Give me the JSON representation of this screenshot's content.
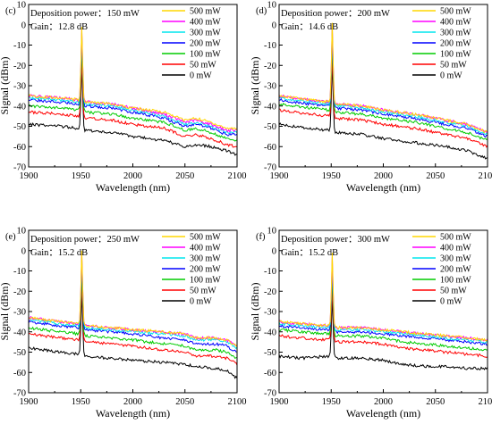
{
  "chart_data": [
    {
      "type": "line",
      "panel_label": "(c)",
      "annotation": "Deposition power：150 mW",
      "gain": "Gain：12.8 dB",
      "xlabel": "Wavelength (nm)",
      "ylabel": "Signal (dBm)",
      "xlim": [
        1900,
        2100
      ],
      "ylim": [
        -70,
        10
      ],
      "xticks": [
        1900,
        1950,
        2000,
        2050,
        2100
      ],
      "yticks": [
        10,
        0,
        -10,
        -20,
        -30,
        -40,
        -50,
        -60,
        -70
      ],
      "legend_position": "top-right",
      "peak_x": 1951,
      "series": [
        {
          "name": "500 mW",
          "color": "#ffd700",
          "peak": -1,
          "x": [
            1900,
            1930,
            1948,
            1955,
            1980,
            2000,
            2030,
            2050,
            2060,
            2075,
            2090,
            2100
          ],
          "y": [
            -35,
            -36,
            -37,
            -38,
            -39,
            -41,
            -43,
            -47,
            -46,
            -48,
            -51,
            -51
          ]
        },
        {
          "name": "400 mW",
          "color": "#ff00ff",
          "peak": -2,
          "x": [
            1900,
            1930,
            1948,
            1955,
            1980,
            2000,
            2030,
            2050,
            2060,
            2075,
            2090,
            2100
          ],
          "y": [
            -35,
            -36,
            -37,
            -38,
            -39,
            -41,
            -44,
            -48,
            -47,
            -49,
            -52,
            -52
          ]
        },
        {
          "name": "300 mW",
          "color": "#00e5ee",
          "peak": -4,
          "x": [
            1900,
            1930,
            1948,
            1955,
            1980,
            2000,
            2030,
            2050,
            2060,
            2075,
            2090,
            2100
          ],
          "y": [
            -36,
            -37,
            -38,
            -39,
            -40,
            -42,
            -45,
            -49,
            -48,
            -50,
            -53,
            -53
          ]
        },
        {
          "name": "200 mW",
          "color": "#0000ff",
          "peak": -6,
          "x": [
            1900,
            1930,
            1948,
            1955,
            1980,
            2000,
            2030,
            2050,
            2060,
            2075,
            2090,
            2100
          ],
          "y": [
            -37,
            -38,
            -39,
            -40,
            -41,
            -43,
            -46,
            -50,
            -49,
            -51,
            -54,
            -54
          ]
        },
        {
          "name": "100 mW",
          "color": "#00cc00",
          "peak": -10,
          "x": [
            1900,
            1930,
            1948,
            1955,
            1980,
            2000,
            2030,
            2050,
            2060,
            2075,
            2090,
            2100
          ],
          "y": [
            -40,
            -41,
            -42,
            -43,
            -44,
            -46,
            -48,
            -52,
            -51,
            -53,
            -56,
            -57
          ]
        },
        {
          "name": "50 mW",
          "color": "#ff0000",
          "peak": -17,
          "x": [
            1900,
            1930,
            1948,
            1955,
            1980,
            2000,
            2030,
            2050,
            2060,
            2075,
            2090,
            2100
          ],
          "y": [
            -43,
            -44,
            -45,
            -46,
            -47,
            -49,
            -51,
            -55,
            -54,
            -56,
            -59,
            -60
          ]
        },
        {
          "name": "0 mW",
          "color": "#000000",
          "peak": -20,
          "x": [
            1900,
            1930,
            1948,
            1955,
            1980,
            2000,
            2030,
            2050,
            2060,
            2075,
            2090,
            2100
          ],
          "y": [
            -49,
            -50,
            -51,
            -52,
            -53,
            -55,
            -57,
            -60,
            -59,
            -60,
            -62,
            -64
          ]
        }
      ]
    },
    {
      "type": "line",
      "panel_label": "(d)",
      "annotation": "Deposition power：200 mW",
      "gain": "Gain：14.6 dB",
      "xlabel": "Wavelength (nm)",
      "ylabel": "Signal (dBm)",
      "xlim": [
        1900,
        2100
      ],
      "ylim": [
        -70,
        10
      ],
      "xticks": [
        1900,
        1950,
        2000,
        2050,
        2100
      ],
      "yticks": [
        10,
        0,
        -10,
        -20,
        -30,
        -40,
        -50,
        -60,
        -70
      ],
      "legend_position": "top-right",
      "peak_x": 1951,
      "series": [
        {
          "name": "500 mW",
          "color": "#ffd700",
          "peak": 1,
          "x": [
            1900,
            1930,
            1948,
            1955,
            1980,
            2000,
            2030,
            2060,
            2080,
            2100
          ],
          "y": [
            -35,
            -37,
            -38,
            -39,
            -40,
            -42,
            -44,
            -47,
            -49,
            -53
          ]
        },
        {
          "name": "400 mW",
          "color": "#ff00ff",
          "peak": 0,
          "x": [
            1900,
            1930,
            1948,
            1955,
            1980,
            2000,
            2030,
            2060,
            2080,
            2100
          ],
          "y": [
            -35,
            -37,
            -38,
            -39,
            -40,
            -42,
            -44,
            -47,
            -49,
            -53
          ]
        },
        {
          "name": "300 mW",
          "color": "#00e5ee",
          "peak": -2,
          "x": [
            1900,
            1930,
            1948,
            1955,
            1980,
            2000,
            2030,
            2060,
            2080,
            2100
          ],
          "y": [
            -36,
            -38,
            -39,
            -40,
            -41,
            -43,
            -45,
            -48,
            -50,
            -54
          ]
        },
        {
          "name": "200 mW",
          "color": "#0000ff",
          "peak": -4,
          "x": [
            1900,
            1930,
            1948,
            1955,
            1980,
            2000,
            2030,
            2060,
            2080,
            2100
          ],
          "y": [
            -37,
            -39,
            -40,
            -41,
            -42,
            -44,
            -46,
            -49,
            -51,
            -55
          ]
        },
        {
          "name": "100 mW",
          "color": "#00cc00",
          "peak": -8,
          "x": [
            1900,
            1930,
            1948,
            1955,
            1980,
            2000,
            2030,
            2060,
            2080,
            2100
          ],
          "y": [
            -39,
            -41,
            -42,
            -43,
            -44,
            -46,
            -48,
            -51,
            -53,
            -57
          ]
        },
        {
          "name": "50 mW",
          "color": "#ff0000",
          "peak": -14,
          "x": [
            1900,
            1930,
            1948,
            1955,
            1980,
            2000,
            2030,
            2060,
            2080,
            2100
          ],
          "y": [
            -42,
            -44,
            -45,
            -46,
            -47,
            -49,
            -51,
            -54,
            -56,
            -60
          ]
        },
        {
          "name": "0 mW",
          "color": "#000000",
          "peak": -18,
          "x": [
            1900,
            1930,
            1948,
            1955,
            1980,
            2000,
            2030,
            2060,
            2080,
            2100
          ],
          "y": [
            -49,
            -51,
            -52,
            -53,
            -54,
            -56,
            -58,
            -60,
            -62,
            -66
          ]
        }
      ]
    },
    {
      "type": "line",
      "panel_label": "(e)",
      "annotation": "Deposition power：250 mW",
      "gain": "Gain：15.2 dB",
      "xlabel": "Wavelength (nm)",
      "ylabel": "Signal (dBm)",
      "xlim": [
        1900,
        2100
      ],
      "ylim": [
        -70,
        10
      ],
      "xticks": [
        1900,
        1950,
        2000,
        2050,
        2100
      ],
      "yticks": [
        10,
        0,
        -10,
        -20,
        -30,
        -40,
        -50,
        -60,
        -70
      ],
      "legend_position": "top-right",
      "peak_x": 1951,
      "series": [
        {
          "name": "500 mW",
          "color": "#ffd700",
          "peak": 0,
          "x": [
            1900,
            1930,
            1948,
            1955,
            1980,
            2000,
            2030,
            2050,
            2060,
            2080,
            2090,
            2100
          ],
          "y": [
            -33,
            -35,
            -36,
            -37,
            -38,
            -39,
            -40,
            -41,
            -43,
            -43,
            -44,
            -47
          ]
        },
        {
          "name": "400 mW",
          "color": "#ff00ff",
          "peak": -1,
          "x": [
            1900,
            1930,
            1948,
            1955,
            1980,
            2000,
            2030,
            2050,
            2060,
            2080,
            2090,
            2100
          ],
          "y": [
            -33,
            -35,
            -36,
            -37,
            -38,
            -39,
            -40,
            -41,
            -43,
            -43,
            -44,
            -47
          ]
        },
        {
          "name": "300 mW",
          "color": "#00e5ee",
          "peak": -3,
          "x": [
            1900,
            1930,
            1948,
            1955,
            1980,
            2000,
            2030,
            2050,
            2060,
            2080,
            2090,
            2100
          ],
          "y": [
            -34,
            -36,
            -37,
            -38,
            -39,
            -40,
            -41,
            -42,
            -44,
            -44,
            -45,
            -48
          ]
        },
        {
          "name": "200 mW",
          "color": "#0000ff",
          "peak": -6,
          "x": [
            1900,
            1930,
            1948,
            1955,
            1980,
            2000,
            2030,
            2050,
            2060,
            2080,
            2090,
            2100
          ],
          "y": [
            -35,
            -37,
            -38,
            -39,
            -40,
            -41,
            -43,
            -44,
            -46,
            -46,
            -47,
            -50
          ]
        },
        {
          "name": "100 mW",
          "color": "#00cc00",
          "peak": -10,
          "x": [
            1900,
            1930,
            1948,
            1955,
            1980,
            2000,
            2030,
            2050,
            2060,
            2080,
            2090,
            2100
          ],
          "y": [
            -38,
            -40,
            -41,
            -42,
            -43,
            -44,
            -46,
            -47,
            -49,
            -49,
            -50,
            -53
          ]
        },
        {
          "name": "50 mW",
          "color": "#ff0000",
          "peak": -15,
          "x": [
            1900,
            1930,
            1948,
            1955,
            1980,
            2000,
            2030,
            2050,
            2060,
            2080,
            2090,
            2100
          ],
          "y": [
            -41,
            -43,
            -44,
            -45,
            -46,
            -47,
            -49,
            -50,
            -52,
            -52,
            -53,
            -56
          ]
        },
        {
          "name": "0 mW",
          "color": "#000000",
          "peak": -20,
          "x": [
            1900,
            1930,
            1948,
            1955,
            1980,
            2000,
            2030,
            2050,
            2060,
            2080,
            2090,
            2100
          ],
          "y": [
            -48,
            -50,
            -51,
            -52,
            -53,
            -54,
            -55,
            -56,
            -57,
            -58,
            -59,
            -63
          ]
        }
      ]
    },
    {
      "type": "line",
      "panel_label": "(f)",
      "annotation": "Deposition power：300 mW",
      "gain": "Gain：15.2 dB",
      "xlabel": "Wavelength (nm)",
      "ylabel": "Signal (dBm)",
      "xlim": [
        1900,
        2100
      ],
      "ylim": [
        -70,
        10
      ],
      "xticks": [
        1900,
        1950,
        2000,
        2050,
        2100
      ],
      "yticks": [
        10,
        0,
        -10,
        -20,
        -30,
        -40,
        -50,
        -60,
        -70
      ],
      "legend_position": "top-right",
      "peak_x": 1951,
      "series": [
        {
          "name": "500 mW",
          "color": "#ffd700",
          "peak": -1,
          "x": [
            1900,
            1920,
            1948,
            1955,
            1980,
            2000,
            2020,
            2040,
            2060,
            2080,
            2100
          ],
          "y": [
            -35,
            -36,
            -37,
            -38,
            -38,
            -39,
            -40,
            -41,
            -42,
            -43,
            -44
          ]
        },
        {
          "name": "400 mW",
          "color": "#ff00ff",
          "peak": -3,
          "x": [
            1900,
            1920,
            1948,
            1955,
            1980,
            2000,
            2020,
            2040,
            2060,
            2080,
            2100
          ],
          "y": [
            -35,
            -36,
            -37,
            -38,
            -38,
            -39,
            -40,
            -41,
            -42,
            -43,
            -44
          ]
        },
        {
          "name": "300 mW",
          "color": "#00e5ee",
          "peak": -6,
          "x": [
            1900,
            1920,
            1948,
            1955,
            1980,
            2000,
            2020,
            2040,
            2060,
            2080,
            2100
          ],
          "y": [
            -36,
            -37,
            -38,
            -39,
            -39,
            -40,
            -41,
            -42,
            -43,
            -44,
            -45
          ]
        },
        {
          "name": "200 mW",
          "color": "#0000ff",
          "peak": -9,
          "x": [
            1900,
            1920,
            1948,
            1955,
            1980,
            2000,
            2020,
            2040,
            2060,
            2080,
            2100
          ],
          "y": [
            -37,
            -38,
            -39,
            -40,
            -40,
            -41,
            -42,
            -43,
            -44,
            -45,
            -46
          ]
        },
        {
          "name": "100 mW",
          "color": "#00cc00",
          "peak": -13,
          "x": [
            1900,
            1920,
            1948,
            1955,
            1980,
            2000,
            2020,
            2040,
            2060,
            2080,
            2100
          ],
          "y": [
            -39,
            -40,
            -41,
            -42,
            -42,
            -43,
            -45,
            -46,
            -47,
            -48,
            -49
          ]
        },
        {
          "name": "50 mW",
          "color": "#ff0000",
          "peak": -18,
          "x": [
            1900,
            1920,
            1948,
            1955,
            1980,
            2000,
            2020,
            2040,
            2060,
            2080,
            2100
          ],
          "y": [
            -42,
            -43,
            -44,
            -45,
            -45,
            -46,
            -48,
            -49,
            -50,
            -51,
            -52
          ]
        },
        {
          "name": "0 mW",
          "color": "#000000",
          "peak": -22,
          "x": [
            1900,
            1920,
            1948,
            1955,
            1980,
            2000,
            2020,
            2040,
            2060,
            2080,
            2100
          ],
          "y": [
            -52,
            -53,
            -52,
            -53,
            -53,
            -54,
            -56,
            -57,
            -57,
            -58,
            -58
          ]
        }
      ]
    }
  ]
}
